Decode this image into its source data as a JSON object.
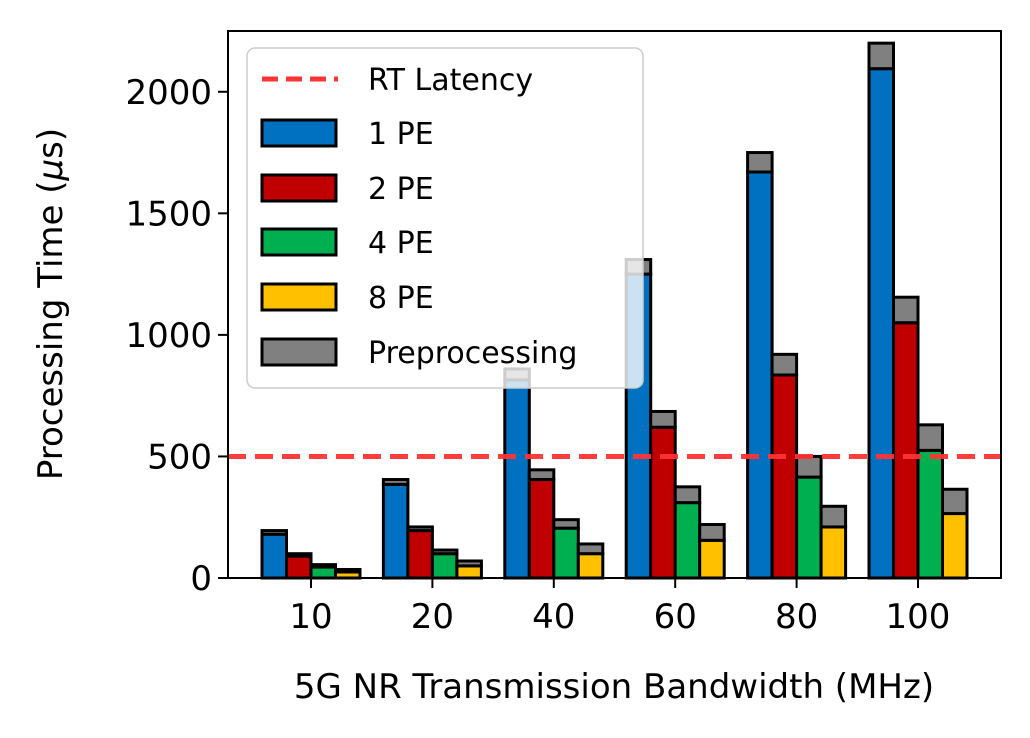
{
  "chart_data": {
    "type": "bar",
    "title": "",
    "xlabel": "5G NR Transmission Bandwidth (MHz)",
    "ylabel_prefix": "Processing Time (",
    "ylabel_symbol": "μ",
    "ylabel_suffix": "s)",
    "ylim": [
      0,
      2250
    ],
    "yticks": [
      0,
      500,
      1000,
      1500,
      2000
    ],
    "ytick_labels": [
      "0",
      "500",
      "1000",
      "1500",
      "2000"
    ],
    "categories": [
      "10",
      "20",
      "40",
      "60",
      "80",
      "100"
    ],
    "series": [
      {
        "name": "1 PE",
        "color": "#0070c0",
        "values": [
          180,
          385,
          815,
          1250,
          1670,
          2095
        ],
        "preprocessing": [
          15,
          20,
          45,
          60,
          80,
          105
        ]
      },
      {
        "name": "2 PE",
        "color": "#c00000",
        "values": [
          90,
          195,
          405,
          620,
          835,
          1050
        ],
        "preprocessing": [
          10,
          15,
          40,
          65,
          85,
          105
        ]
      },
      {
        "name": "4 PE",
        "color": "#00b050",
        "values": [
          45,
          100,
          205,
          310,
          415,
          525
        ],
        "preprocessing": [
          10,
          15,
          35,
          65,
          85,
          105
        ]
      },
      {
        "name": "8 PE",
        "color": "#ffc000",
        "values": [
          25,
          50,
          100,
          155,
          210,
          265
        ],
        "preprocessing": [
          10,
          20,
          40,
          65,
          85,
          100
        ]
      }
    ],
    "preprocessing": {
      "name": "Preprocessing",
      "color": "#808080"
    },
    "reference_line": {
      "name": "RT Latency",
      "value": 500,
      "color": "#ff3333"
    },
    "legend": {
      "location": "upper-left"
    }
  }
}
